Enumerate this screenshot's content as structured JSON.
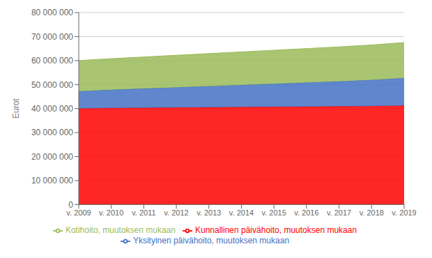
{
  "chart_data": {
    "type": "area",
    "stacked": true,
    "grid": true,
    "legend": "bottom",
    "ylabel": "Eurot",
    "x": [
      2009,
      2010,
      2011,
      2012,
      2013,
      2014,
      2015,
      2016,
      2017,
      2018,
      2019
    ],
    "xlim": [
      2009,
      2019
    ],
    "xticks": [
      {
        "value": 2009,
        "label": "v. 2009"
      },
      {
        "value": 2010,
        "label": "v. 2010"
      },
      {
        "value": 2011,
        "label": "v. 2011"
      },
      {
        "value": 2012,
        "label": "v. 2012"
      },
      {
        "value": 2013,
        "label": "v. 2013"
      },
      {
        "value": 2014,
        "label": "v. 2014"
      },
      {
        "value": 2015,
        "label": "v. 2015"
      },
      {
        "value": 2016,
        "label": "v. 2016"
      },
      {
        "value": 2017,
        "label": "v. 2017"
      },
      {
        "value": 2018,
        "label": "v. 2018"
      },
      {
        "value": 2019,
        "label": "v. 2019"
      }
    ],
    "ylim": [
      0,
      80000000
    ],
    "yticks": [
      0,
      {
        "value": 10000000,
        "label": "10 000 000"
      },
      {
        "value": 20000000,
        "label": "20 000 000"
      },
      {
        "value": 30000000,
        "label": "30 000 000"
      },
      {
        "value": 40000000,
        "label": "40 000 000"
      },
      {
        "value": 50000000,
        "label": "50 000 000"
      },
      {
        "value": 60000000,
        "label": "60 000 000"
      },
      {
        "value": 70000000,
        "label": "70 000 000"
      },
      {
        "value": 80000000,
        "label": "80 000 000"
      }
    ],
    "series": [
      {
        "name": "Kunnallinen päivähoito, muutoksen mukaan",
        "color": "#FF0000",
        "values": [
          40000000,
          40200000,
          40300000,
          40400000,
          40500000,
          40600000,
          40700000,
          40800000,
          40900000,
          41000000,
          41200000
        ]
      },
      {
        "name": "Yksityinen päivähoito, muutoksen mukaan",
        "color": "#4472C4",
        "values": [
          7200000,
          7600000,
          8000000,
          8400000,
          8800000,
          9200000,
          9600000,
          10000000,
          10400000,
          10900000,
          11500000
        ]
      },
      {
        "name": "Kotihoito, muutoksen mukaan",
        "color": "#9BBB59",
        "values": [
          12800000,
          13000000,
          13200000,
          13400000,
          13600000,
          13800000,
          14000000,
          14200000,
          14400000,
          14600000,
          14800000
        ]
      }
    ]
  }
}
